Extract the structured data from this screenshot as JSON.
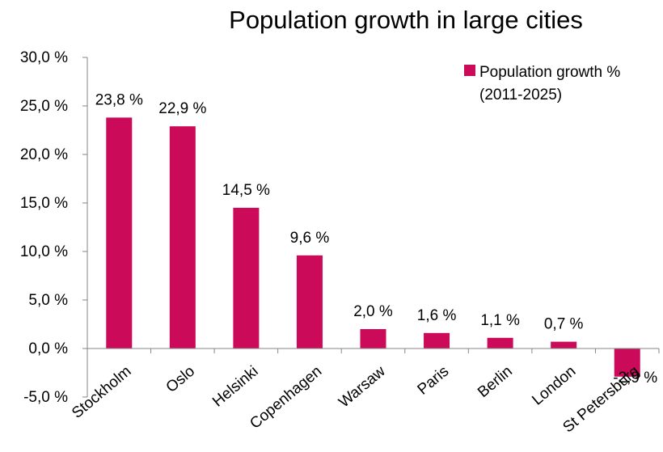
{
  "chart_data": {
    "type": "bar",
    "title": "Population growth in large cities",
    "categories": [
      "Stockholm",
      "Oslo",
      "Helsinki",
      "Copenhagen",
      "Warsaw",
      "Paris",
      "Berlin",
      "London",
      "St Petersburg"
    ],
    "series": [
      {
        "name": "Population growth % (2011-2025)",
        "values": [
          23.8,
          22.9,
          14.5,
          9.6,
          2.0,
          1.6,
          1.1,
          0.7,
          -2.9
        ],
        "labels": [
          "23,8 %",
          "22,9 %",
          "14,5 %",
          "9,6 %",
          "2,0 %",
          "1,6 %",
          "1,1 %",
          "0,7 %",
          "-2,9 %"
        ]
      }
    ],
    "ylim": [
      -5,
      30
    ],
    "yticks": [
      -5,
      0,
      5,
      10,
      15,
      20,
      25,
      30
    ],
    "ytick_labels": [
      "-5,0 %",
      "0,0 %",
      "5,0 %",
      "10,0 %",
      "15,0 %",
      "20,0 %",
      "25,0 %",
      "30,0 %"
    ],
    "legend": {
      "line1": "Population growth %",
      "line2": "(2011-2025)",
      "position": "top-right"
    },
    "colors": {
      "bar": "#cc0a5a",
      "axis": "#868686"
    },
    "grid": false
  }
}
